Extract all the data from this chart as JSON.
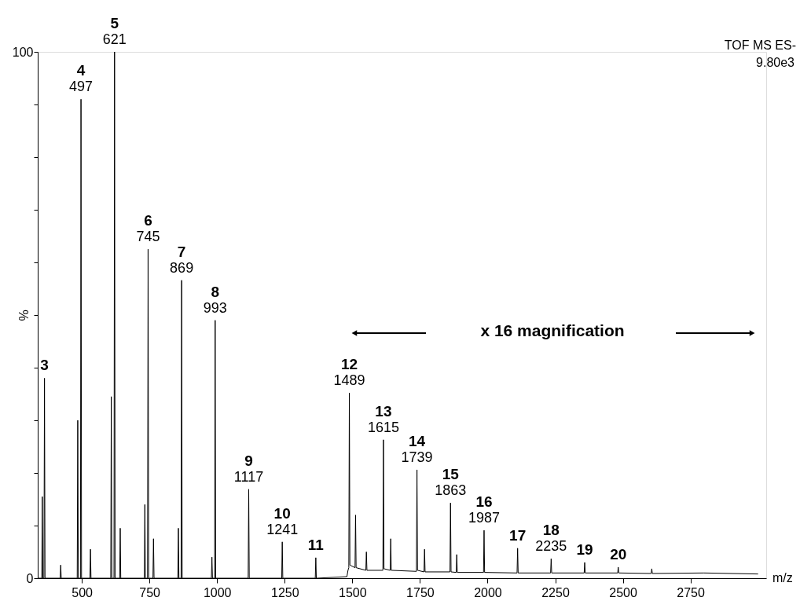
{
  "chart_data": {
    "type": "line",
    "xlabel": "m/z",
    "ylabel": "%",
    "xlim": [
      337,
      3030
    ],
    "xticks": [
      500,
      750,
      1000,
      1250,
      1500,
      1750,
      2000,
      2250,
      2500,
      2750
    ],
    "ylim": [
      0,
      100
    ],
    "yticks": [
      0,
      {
        "value": 10,
        "label": null
      },
      {
        "value": 20,
        "label": null
      },
      {
        "value": 30,
        "label": null
      },
      {
        "value": 40,
        "label": null
      },
      {
        "value": 50,
        "label": null
      },
      {
        "value": 60,
        "label": null
      },
      {
        "value": 70,
        "label": null
      },
      {
        "value": 80,
        "label": null
      },
      {
        "value": 90,
        "label": null
      },
      100
    ],
    "marker": "none",
    "line_style": "solid",
    "series": [
      {
        "color": "#000000",
        "x": [
          337,
          352,
          354,
          356,
          360,
          362,
          364,
          420,
          422,
          424,
          483,
          485,
          487,
          495,
          497,
          499,
          530,
          532,
          534,
          607,
          609,
          611,
          619,
          621,
          623,
          640,
          642,
          644,
          731,
          733,
          735,
          743,
          745,
          747,
          763,
          765,
          767,
          855,
          857,
          859,
          867,
          869,
          871,
          979,
          981,
          983,
          991,
          993,
          995,
          1115,
          1117,
          1119,
          1239,
          1241,
          1243,
          1363,
          1365,
          1367,
          1480,
          1484,
          1487,
          1489,
          1491,
          1510,
          1512,
          1514,
          1550,
          1552,
          1554,
          1613,
          1615,
          1617,
          1640,
          1642,
          1644,
          1737,
          1739,
          1741,
          1765,
          1767,
          1769,
          1861,
          1863,
          1865,
          1884,
          1886,
          1888,
          1985,
          1987,
          1989,
          2109,
          2111,
          2113,
          2233,
          2235,
          2237,
          2357,
          2359,
          2361,
          2481,
          2483,
          2485,
          2605,
          2607,
          2609,
          2800,
          3000
        ],
        "values": [
          0,
          0,
          15.5,
          0,
          0,
          38,
          0,
          0,
          2.5,
          0,
          0,
          30,
          0,
          0,
          91,
          0,
          0,
          5.5,
          0,
          0,
          34.5,
          0,
          0,
          100,
          0,
          0,
          9.5,
          0,
          0,
          14,
          0,
          0,
          62.5,
          0,
          0,
          7.5,
          0,
          0,
          9.5,
          0,
          0,
          56.6,
          0,
          0,
          4,
          0,
          0,
          49,
          0,
          0,
          16.9,
          0,
          0,
          6.9,
          0,
          0,
          3.9,
          0,
          0.3,
          1.5,
          2,
          35.2,
          2.5,
          2,
          12,
          2,
          1.5,
          5,
          1.5,
          1.5,
          26.3,
          1.8,
          1.5,
          7.5,
          1.5,
          1.3,
          20.6,
          1.5,
          1.2,
          5.5,
          1.2,
          1.2,
          14.3,
          1.2,
          1.1,
          4.5,
          1.1,
          1.1,
          9.1,
          1.1,
          1,
          5.7,
          1,
          1,
          3.7,
          1,
          1,
          3,
          1,
          1,
          2.1,
          1,
          0.9,
          1.8,
          0.9,
          1,
          0.8
        ]
      }
    ],
    "annotations": [
      {
        "text": "3",
        "x": 362,
        "y": 38
      },
      {
        "text": "4",
        "x": 497,
        "y": 91
      },
      {
        "text": "497",
        "x": 497,
        "y": 91
      },
      {
        "text": "5",
        "x": 621,
        "y": 100
      },
      {
        "text": "621",
        "x": 621,
        "y": 100
      },
      {
        "text": "6",
        "x": 745,
        "y": 62.5
      },
      {
        "text": "745",
        "x": 745,
        "y": 62.5
      },
      {
        "text": "7",
        "x": 869,
        "y": 56.6
      },
      {
        "text": "869",
        "x": 869,
        "y": 56.6
      },
      {
        "text": "8",
        "x": 993,
        "y": 49
      },
      {
        "text": "993",
        "x": 993,
        "y": 49
      },
      {
        "text": "9",
        "x": 1117,
        "y": 16.9
      },
      {
        "text": "1117",
        "x": 1117,
        "y": 16.9
      },
      {
        "text": "10",
        "x": 1241,
        "y": 6.9
      },
      {
        "text": "1241",
        "x": 1241,
        "y": 6.9
      },
      {
        "text": "11",
        "x": 1365,
        "y": 3.9
      },
      {
        "text": "12",
        "x": 1489,
        "y": 35.2
      },
      {
        "text": "1489",
        "x": 1489,
        "y": 35.2
      },
      {
        "text": "13",
        "x": 1615,
        "y": 26.3
      },
      {
        "text": "1615",
        "x": 1615,
        "y": 26.3
      },
      {
        "text": "14",
        "x": 1739,
        "y": 20.6
      },
      {
        "text": "1739",
        "x": 1739,
        "y": 20.6
      },
      {
        "text": "15",
        "x": 1863,
        "y": 14.3
      },
      {
        "text": "1863",
        "x": 1863,
        "y": 14.3
      },
      {
        "text": "16",
        "x": 1987,
        "y": 9.1
      },
      {
        "text": "1987",
        "x": 1987,
        "y": 9.1
      },
      {
        "text": "17",
        "x": 2111,
        "y": 5.7
      },
      {
        "text": "18",
        "x": 2235,
        "y": 3.7
      },
      {
        "text": "2235",
        "x": 2235,
        "y": 3.7
      },
      {
        "text": "19",
        "x": 2359,
        "y": 3
      },
      {
        "text": "20",
        "x": 2483,
        "y": 2.1
      },
      "TOF MS ES-",
      "9.80e3",
      "x 16 magnification"
    ]
  }
}
